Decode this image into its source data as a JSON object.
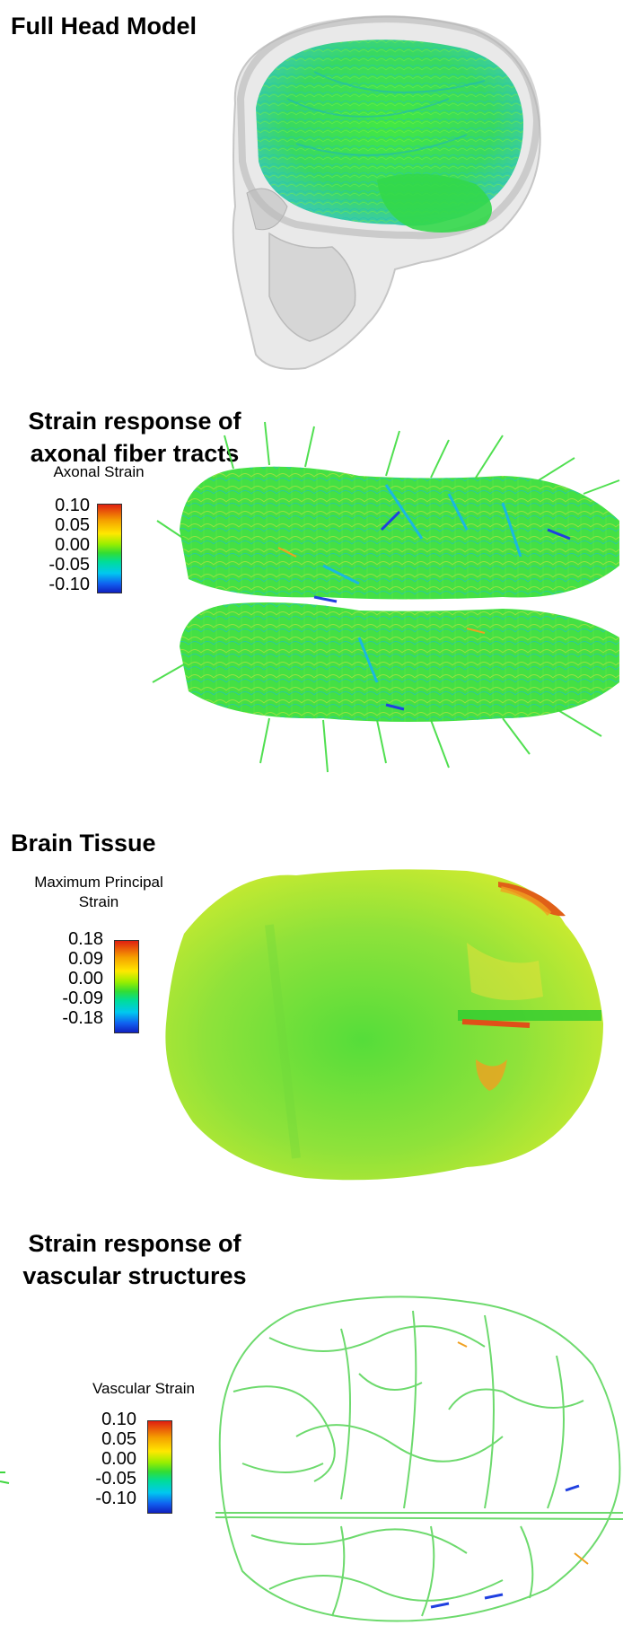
{
  "panels": {
    "head": {
      "title": "Full Head Model"
    },
    "axonal": {
      "title_line1": "Strain response of",
      "title_line2": "axonal fiber tracts",
      "legend_title": "Axonal Strain",
      "ticks": [
        "0.10",
        "0.05",
        "0.00",
        "-0.05",
        "-0.10"
      ]
    },
    "tissue": {
      "title": "Brain Tissue",
      "legend_title_line1": "Maximum Principal",
      "legend_title_line2": "Strain",
      "ticks": [
        "0.18",
        "0.09",
        "0.00",
        "-0.09",
        "-0.18"
      ]
    },
    "vascular": {
      "title_line1": "Strain response of",
      "title_line2": "vascular structures",
      "legend_title": "Vascular Strain",
      "ticks": [
        "0.10",
        "0.05",
        "0.00",
        "-0.05",
        "-0.10"
      ]
    }
  },
  "colors": {
    "fiber_green": "#3de03d",
    "fiber_cyan": "#29d0c8",
    "fiber_blue": "#2040e0",
    "tissue_green": "#8fe23a",
    "skull_gray": "#d8d8d8",
    "vessel_green": "#5ed65e"
  }
}
